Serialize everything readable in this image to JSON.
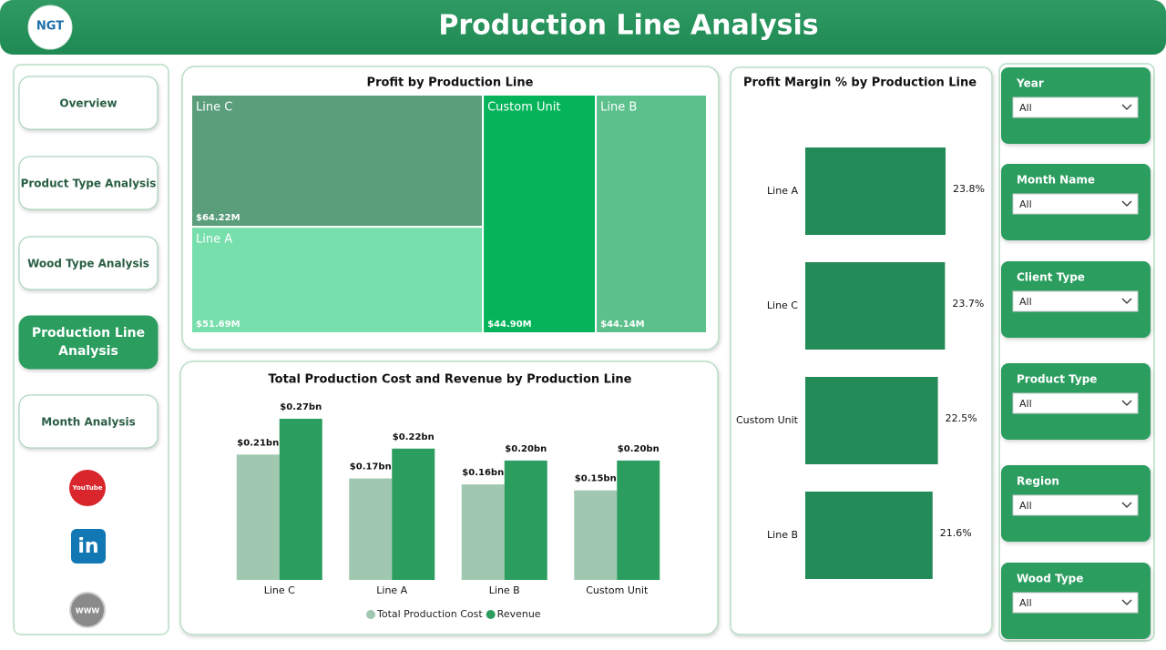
{
  "header": {
    "logo": "NGT",
    "title": "Production Line Analysis"
  },
  "nav": [
    "Overview",
    "Product Type Analysis",
    "Wood Type Analysis",
    "Production Line Analysis",
    "Month Analysis"
  ],
  "social": [
    "YouTube",
    "in",
    "WWW"
  ],
  "filters": [
    {
      "label": "Year",
      "value": "All"
    },
    {
      "label": "Month Name",
      "value": "All"
    },
    {
      "label": "Client Type",
      "value": "All"
    },
    {
      "label": "Product Type",
      "value": "All"
    },
    {
      "label": "Region",
      "value": "All"
    },
    {
      "label": "Wood Type",
      "value": "All"
    }
  ],
  "chart_data": [
    {
      "type": "treemap",
      "title": "Profit by Production Line",
      "categories": [
        "Line C",
        "Line A",
        "Custom Unit",
        "Line B"
      ],
      "values": [
        64.22,
        51.69,
        44.9,
        44.14
      ],
      "value_labels": [
        "$64.22M",
        "$51.69M",
        "$44.90M",
        "$44.14M"
      ],
      "colors": [
        "#5a9e7c",
        "#77dfab",
        "#05b45a",
        "#5bc08c"
      ]
    },
    {
      "type": "bar",
      "title": "Total Production Cost and Revenue by Production Line",
      "categories": [
        "Line C",
        "Line A",
        "Line B",
        "Custom Unit"
      ],
      "series": [
        {
          "name": "Total Production Cost",
          "color": "#a0c8b0",
          "values": [
            0.21,
            0.17,
            0.16,
            0.15
          ],
          "value_labels": [
            "$0.21bn",
            "$0.17bn",
            "$0.16bn",
            "$0.15bn"
          ]
        },
        {
          "name": "Revenue",
          "color": "#2a9d5f",
          "values": [
            0.27,
            0.22,
            0.2,
            0.2
          ],
          "value_labels": [
            "$0.27bn",
            "$0.22bn",
            "$0.20bn",
            "$0.20bn"
          ]
        }
      ],
      "legend": "bottom"
    },
    {
      "type": "hbar",
      "title": "Profit Margin % by Production Line",
      "categories": [
        "Line A",
        "Line C",
        "Custom Unit",
        "Line B"
      ],
      "values": [
        23.8,
        23.7,
        22.5,
        21.6
      ],
      "value_labels": [
        "23.8%",
        "23.7%",
        "22.5%",
        "21.6%"
      ],
      "color": "#238b57"
    }
  ]
}
